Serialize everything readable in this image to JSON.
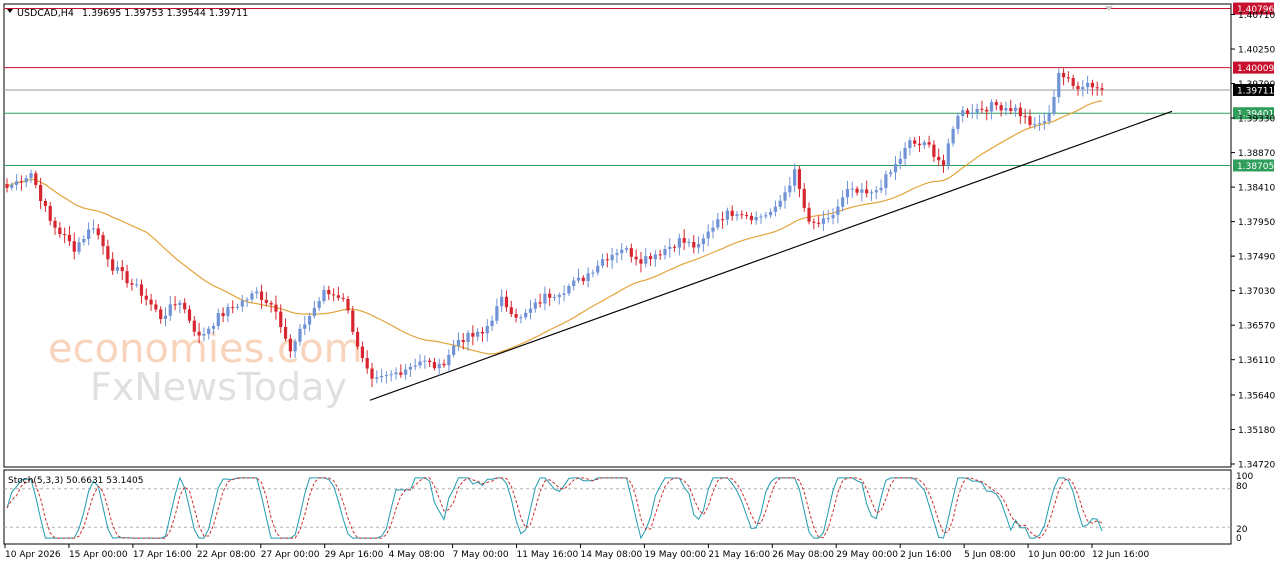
{
  "header": {
    "symbol": "USDCAD,H4",
    "ohlc": "1.39695 1.39753 1.39544 1.39711"
  },
  "stoch_header": "Stoch(5,3,3) 50.6631 53.1405",
  "watermark": {
    "line1": "economies.com",
    "line2": "FxNewsToday"
  },
  "colors": {
    "bull": "#6f93d6",
    "bear": "#d7262f",
    "ma": "#e3a33a",
    "trendline": "#000000",
    "resistance": "#c8102e",
    "support": "#2e9e5a",
    "current": "#9a9a9a",
    "stoch_main": "#1f9bb0",
    "stoch_signal": "#c83232"
  },
  "price_axis": {
    "ticks": [
      "1.40710",
      "1.40250",
      "1.39790",
      "1.39330",
      "1.38870",
      "1.38410",
      "1.37950",
      "1.37490",
      "1.37030",
      "1.36570",
      "1.36110",
      "1.35640",
      "1.35180",
      "1.34720"
    ]
  },
  "stoch_axis": {
    "ticks": [
      "100",
      "80",
      "20",
      "0"
    ]
  },
  "time_axis": {
    "labels": [
      "10 Apr 2026",
      "15 Apr 00:00",
      "17 Apr 16:00",
      "22 Apr 08:00",
      "27 Apr 00:00",
      "29 Apr 16:00",
      "4 May 08:00",
      "7 May 00:00",
      "11 May 16:00",
      "14 May 08:00",
      "19 May 00:00",
      "21 May 16:00",
      "26 May 08:00",
      "29 May 00:00",
      "2 Jun 16:00",
      "5 Jun 08:00",
      "10 Jun 00:00",
      "12 Jun 16:00"
    ]
  },
  "levels": [
    {
      "label": "1.40796",
      "value": 1.40796,
      "kind": "resistance"
    },
    {
      "label": "1.40009",
      "value": 1.40009,
      "kind": "resistance"
    },
    {
      "label": "1.39711",
      "value": 1.39711,
      "kind": "current"
    },
    {
      "label": "1.39401",
      "value": 1.39401,
      "kind": "support"
    },
    {
      "label": "1.38705",
      "value": 1.38705,
      "kind": "support"
    }
  ],
  "chart_data": {
    "type": "candlestick",
    "instrument": "USDCAD",
    "timeframe": "H4",
    "price_range": [
      1.3468,
      1.4085
    ],
    "trendline": {
      "from": {
        "bar": 0,
        "price": 1.3557
      },
      "to": {
        "bar": 1,
        "price": 1.3942
      }
    },
    "anchors": [
      {
        "bar": 0,
        "close": 1.384
      },
      {
        "bar": 5,
        "close": 1.386
      },
      {
        "bar": 9,
        "close": 1.3795
      },
      {
        "bar": 14,
        "close": 1.376
      },
      {
        "bar": 18,
        "close": 1.379
      },
      {
        "bar": 22,
        "close": 1.3735
      },
      {
        "bar": 28,
        "close": 1.37
      },
      {
        "bar": 32,
        "close": 1.3668
      },
      {
        "bar": 36,
        "close": 1.369
      },
      {
        "bar": 40,
        "close": 1.364
      },
      {
        "bar": 44,
        "close": 1.3668
      },
      {
        "bar": 48,
        "close": 1.3685
      },
      {
        "bar": 52,
        "close": 1.37
      },
      {
        "bar": 56,
        "close": 1.368
      },
      {
        "bar": 59,
        "close": 1.362
      },
      {
        "bar": 62,
        "close": 1.366
      },
      {
        "bar": 66,
        "close": 1.37
      },
      {
        "bar": 70,
        "close": 1.3695
      },
      {
        "bar": 74,
        "close": 1.361
      },
      {
        "bar": 76,
        "close": 1.358
      },
      {
        "bar": 80,
        "close": 1.359
      },
      {
        "bar": 86,
        "close": 1.361
      },
      {
        "bar": 90,
        "close": 1.36
      },
      {
        "bar": 94,
        "close": 1.3638
      },
      {
        "bar": 99,
        "close": 1.3645
      },
      {
        "bar": 103,
        "close": 1.369
      },
      {
        "bar": 107,
        "close": 1.3665
      },
      {
        "bar": 112,
        "close": 1.3695
      },
      {
        "bar": 116,
        "close": 1.3705
      },
      {
        "bar": 120,
        "close": 1.372
      },
      {
        "bar": 124,
        "close": 1.3745
      },
      {
        "bar": 128,
        "close": 1.376
      },
      {
        "bar": 132,
        "close": 1.3745
      },
      {
        "bar": 136,
        "close": 1.3755
      },
      {
        "bar": 140,
        "close": 1.377
      },
      {
        "bar": 144,
        "close": 1.376
      },
      {
        "bar": 148,
        "close": 1.38
      },
      {
        "bar": 152,
        "close": 1.381
      },
      {
        "bar": 156,
        "close": 1.38
      },
      {
        "bar": 160,
        "close": 1.381
      },
      {
        "bar": 164,
        "close": 1.386
      },
      {
        "bar": 167,
        "close": 1.379
      },
      {
        "bar": 171,
        "close": 1.3795
      },
      {
        "bar": 175,
        "close": 1.3835
      },
      {
        "bar": 180,
        "close": 1.383
      },
      {
        "bar": 184,
        "close": 1.386
      },
      {
        "bar": 188,
        "close": 1.39
      },
      {
        "bar": 192,
        "close": 1.3895
      },
      {
        "bar": 195,
        "close": 1.387
      },
      {
        "bar": 198,
        "close": 1.394
      },
      {
        "bar": 202,
        "close": 1.3945
      },
      {
        "bar": 206,
        "close": 1.395
      },
      {
        "bar": 210,
        "close": 1.3945
      },
      {
        "bar": 214,
        "close": 1.392
      },
      {
        "bar": 217,
        "close": 1.3935
      },
      {
        "bar": 219,
        "close": 1.3995
      },
      {
        "bar": 222,
        "close": 1.3975
      },
      {
        "bar": 225,
        "close": 1.398
      },
      {
        "bar": 228,
        "close": 1.3971
      }
    ]
  }
}
